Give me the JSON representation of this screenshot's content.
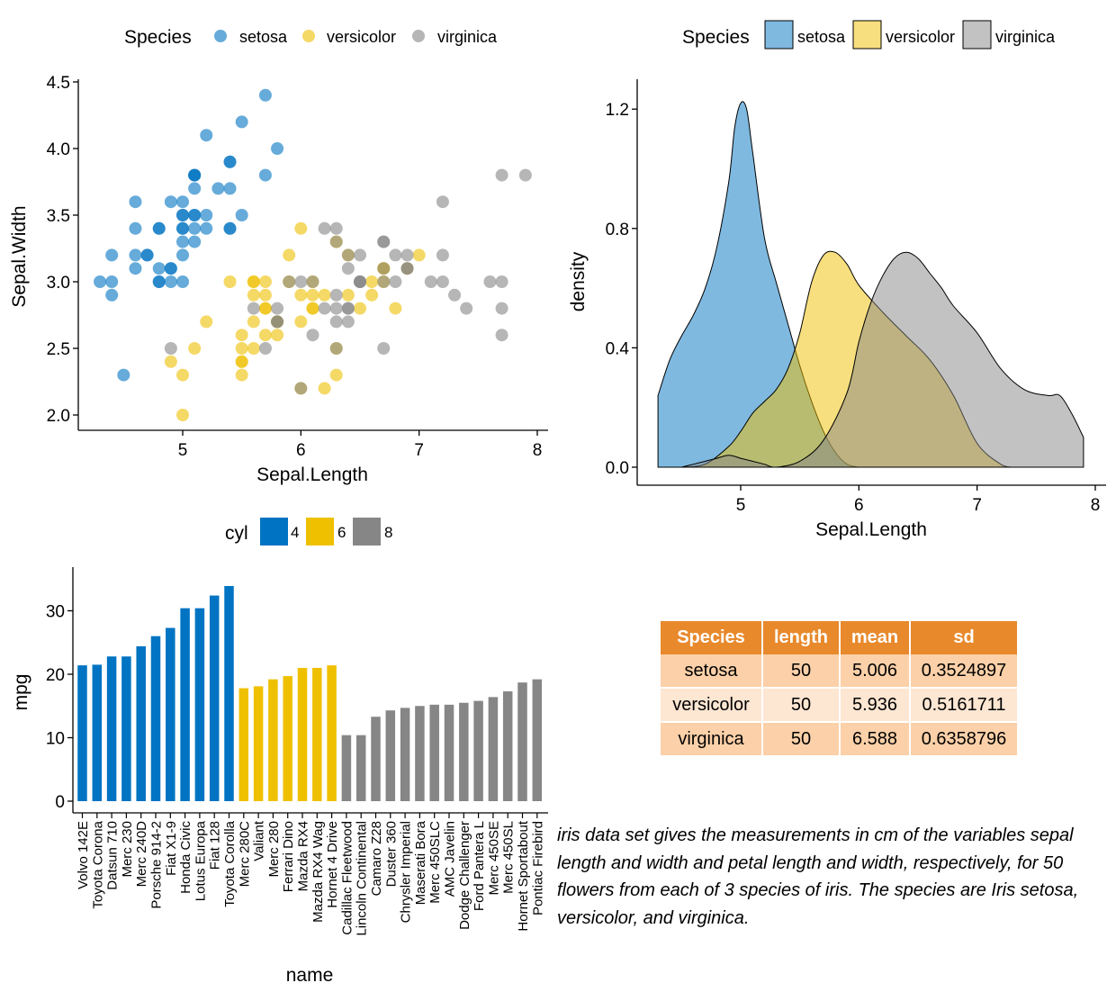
{
  "chart_data": [
    {
      "type": "scatter",
      "xlabel": "Sepal.Length",
      "ylabel": "Sepal.Width",
      "xlim": [
        4.3,
        7.9
      ],
      "ylim": [
        2.0,
        4.4
      ],
      "xticks": [
        "5",
        "6",
        "7",
        "8"
      ],
      "yticks": [
        "2.0",
        "2.5",
        "3.0",
        "3.5",
        "4.0",
        "4.5"
      ],
      "grid": false,
      "legend": {
        "title": "Species",
        "position": "top",
        "entries": [
          "setosa",
          "versicolor",
          "virginica"
        ]
      },
      "series": [
        {
          "name": "setosa",
          "color": "#0073C2",
          "x": [
            5.1,
            4.9,
            4.7,
            4.6,
            5.0,
            5.4,
            4.6,
            5.0,
            4.4,
            4.9,
            5.4,
            4.8,
            4.8,
            4.3,
            5.8,
            5.7,
            5.4,
            5.1,
            5.7,
            5.1,
            5.4,
            5.1,
            4.6,
            5.1,
            4.8,
            5.0,
            5.0,
            5.2,
            5.2,
            4.7,
            4.8,
            5.4,
            5.2,
            5.5,
            4.9,
            5.0,
            5.5,
            4.9,
            4.4,
            5.1,
            5.0,
            4.5,
            4.4,
            5.0,
            5.1,
            4.8,
            5.1,
            4.6,
            5.3,
            5.0
          ],
          "y": [
            3.5,
            3.0,
            3.2,
            3.1,
            3.6,
            3.9,
            3.4,
            3.4,
            2.9,
            3.1,
            3.7,
            3.4,
            3.0,
            3.0,
            4.0,
            4.4,
            3.9,
            3.5,
            3.8,
            3.8,
            3.4,
            3.7,
            3.6,
            3.3,
            3.4,
            3.0,
            3.4,
            3.5,
            3.4,
            3.2,
            3.1,
            3.4,
            4.1,
            4.2,
            3.1,
            3.2,
            3.5,
            3.6,
            3.0,
            3.4,
            3.5,
            2.3,
            3.2,
            3.5,
            3.8,
            3.0,
            3.8,
            3.2,
            3.7,
            3.3
          ]
        },
        {
          "name": "versicolor",
          "color": "#EFC000",
          "x": [
            7.0,
            6.4,
            6.9,
            5.5,
            6.5,
            5.7,
            6.3,
            4.9,
            6.6,
            5.2,
            5.0,
            5.9,
            6.0,
            6.1,
            5.6,
            6.7,
            5.6,
            5.8,
            6.2,
            5.6,
            5.9,
            6.1,
            6.3,
            6.1,
            6.4,
            6.6,
            6.8,
            6.7,
            6.0,
            5.7,
            5.5,
            5.5,
            5.8,
            6.0,
            5.4,
            6.0,
            6.7,
            6.3,
            5.6,
            5.5,
            5.5,
            6.1,
            5.8,
            5.0,
            5.6,
            5.7,
            5.7,
            6.2,
            5.1,
            5.7
          ],
          "y": [
            3.2,
            3.2,
            3.1,
            2.3,
            2.8,
            2.8,
            3.3,
            2.4,
            2.9,
            2.7,
            2.0,
            3.0,
            2.2,
            2.9,
            2.9,
            3.1,
            3.0,
            2.7,
            2.2,
            2.5,
            3.2,
            2.8,
            2.5,
            2.8,
            2.9,
            3.0,
            2.8,
            3.0,
            2.9,
            2.6,
            2.4,
            2.4,
            2.7,
            2.7,
            3.0,
            3.4,
            3.1,
            2.3,
            3.0,
            2.5,
            2.6,
            3.0,
            2.6,
            2.3,
            2.7,
            3.0,
            2.9,
            2.9,
            2.5,
            2.8
          ]
        },
        {
          "name": "virginica",
          "color": "#868686",
          "x": [
            6.3,
            5.8,
            7.1,
            6.3,
            6.5,
            7.6,
            4.9,
            7.3,
            6.7,
            7.2,
            6.5,
            6.4,
            6.8,
            5.7,
            5.8,
            6.4,
            6.5,
            7.7,
            7.7,
            6.0,
            6.9,
            5.6,
            7.7,
            6.3,
            6.7,
            7.2,
            6.2,
            6.1,
            6.4,
            7.2,
            7.4,
            7.9,
            6.4,
            6.3,
            6.1,
            7.7,
            6.3,
            6.4,
            6.0,
            6.9,
            6.7,
            6.9,
            5.8,
            6.8,
            6.7,
            6.7,
            6.3,
            6.5,
            6.2,
            5.9
          ],
          "y": [
            3.3,
            2.7,
            3.0,
            2.9,
            3.0,
            3.0,
            2.5,
            2.9,
            2.5,
            3.6,
            3.2,
            2.7,
            3.0,
            2.5,
            2.8,
            3.2,
            3.0,
            3.8,
            2.6,
            2.2,
            3.2,
            2.8,
            2.8,
            2.7,
            3.3,
            3.2,
            2.8,
            3.0,
            2.8,
            3.0,
            2.8,
            3.8,
            2.8,
            2.8,
            2.6,
            3.0,
            3.4,
            3.1,
            3.0,
            3.1,
            3.1,
            3.1,
            2.7,
            3.2,
            3.3,
            3.0,
            2.5,
            3.0,
            3.4,
            3.0
          ]
        }
      ]
    },
    {
      "type": "area",
      "subtype": "density",
      "xlabel": "Sepal.Length",
      "ylabel": "density",
      "xlim": [
        4.3,
        7.9
      ],
      "ylim": [
        0,
        1.24
      ],
      "xticks": [
        "5",
        "6",
        "7",
        "8"
      ],
      "yticks": [
        "0.0",
        "0.4",
        "0.8",
        "1.2"
      ],
      "grid": false,
      "legend": {
        "title": "Species",
        "position": "top",
        "entries": [
          "setosa",
          "versicolor",
          "virginica"
        ]
      },
      "series": [
        {
          "name": "setosa",
          "color": "#0073C2",
          "x": [
            4.3,
            4.4,
            4.5,
            4.6,
            4.7,
            4.8,
            4.9,
            4.95,
            5.0,
            5.05,
            5.1,
            5.2,
            5.3,
            5.4,
            5.5,
            5.6,
            5.7,
            5.8,
            5.9,
            6.0
          ],
          "y": [
            0.24,
            0.36,
            0.44,
            0.51,
            0.6,
            0.74,
            0.96,
            1.14,
            1.22,
            1.2,
            1.06,
            0.77,
            0.62,
            0.48,
            0.34,
            0.22,
            0.12,
            0.05,
            0.01,
            0.0
          ]
        },
        {
          "name": "versicolor",
          "color": "#EFC000",
          "x": [
            4.5,
            4.7,
            4.9,
            5.0,
            5.1,
            5.2,
            5.3,
            5.4,
            5.5,
            5.6,
            5.7,
            5.8,
            5.9,
            6.0,
            6.2,
            6.4,
            6.6,
            6.8,
            7.0,
            7.2,
            7.3
          ],
          "y": [
            0.0,
            0.01,
            0.07,
            0.12,
            0.18,
            0.22,
            0.26,
            0.33,
            0.45,
            0.62,
            0.71,
            0.72,
            0.68,
            0.61,
            0.52,
            0.44,
            0.36,
            0.24,
            0.08,
            0.01,
            0.0
          ]
        },
        {
          "name": "virginica",
          "color": "#868686",
          "x": [
            4.5,
            4.7,
            4.8,
            4.9,
            5.0,
            5.1,
            5.2,
            5.3,
            5.5,
            5.7,
            5.9,
            6.0,
            6.1,
            6.2,
            6.3,
            6.4,
            6.5,
            6.6,
            6.7,
            6.8,
            7.0,
            7.2,
            7.4,
            7.6,
            7.7,
            7.8,
            7.9
          ],
          "y": [
            0.0,
            0.02,
            0.03,
            0.04,
            0.03,
            0.02,
            0.01,
            0.0,
            0.02,
            0.09,
            0.25,
            0.42,
            0.55,
            0.64,
            0.7,
            0.72,
            0.7,
            0.65,
            0.6,
            0.54,
            0.45,
            0.33,
            0.26,
            0.24,
            0.24,
            0.18,
            0.1
          ]
        }
      ]
    },
    {
      "type": "bar",
      "xlabel": "name",
      "ylabel": "mpg",
      "ylim": [
        0,
        35
      ],
      "yticks": [
        "0",
        "10",
        "20",
        "30"
      ],
      "grid": false,
      "legend": {
        "title": "cyl",
        "position": "top",
        "entries": [
          "4",
          "6",
          "8"
        ]
      },
      "colors": {
        "4": "#0073C2",
        "6": "#EFC000",
        "8": "#868686"
      },
      "categories": [
        "Volvo 142E",
        "Toyota Corona",
        "Datsun 710",
        "Merc 230",
        "Merc 240D",
        "Porsche 914-2",
        "Fiat X1-9",
        "Honda Civic",
        "Lotus Europa",
        "Fiat 128",
        "Toyota Corolla",
        "Merc 280C",
        "Valiant",
        "Merc 280",
        "Ferrari Dino",
        "Mazda RX4",
        "Mazda RX4 Wag",
        "Hornet 4 Drive",
        "Cadillac Fleetwood",
        "Lincoln Continental",
        "Camaro Z28",
        "Duster 360",
        "Chrysler Imperial",
        "Maserati Bora",
        "Merc 450SLC",
        "AMC Javelin",
        "Dodge Challenger",
        "Ford Pantera L",
        "Merc 450SE",
        "Merc 450SL",
        "Hornet Sportabout",
        "Pontiac Firebird"
      ],
      "values": [
        21.4,
        21.5,
        22.8,
        22.8,
        24.4,
        26.0,
        27.3,
        30.4,
        30.4,
        32.4,
        33.9,
        17.8,
        18.1,
        19.2,
        19.7,
        21.0,
        21.0,
        21.4,
        10.4,
        10.4,
        13.3,
        14.3,
        14.7,
        15.0,
        15.2,
        15.2,
        15.5,
        15.8,
        16.4,
        17.3,
        18.7,
        19.2
      ],
      "cyl": [
        4,
        4,
        4,
        4,
        4,
        4,
        4,
        4,
        4,
        4,
        4,
        6,
        6,
        6,
        6,
        6,
        6,
        6,
        8,
        8,
        8,
        8,
        8,
        8,
        8,
        8,
        8,
        8,
        8,
        8,
        8,
        8
      ]
    },
    {
      "type": "table",
      "columns": [
        "Species",
        "length",
        "mean",
        "sd"
      ],
      "rows": [
        [
          "setosa",
          "50",
          "5.006",
          "0.3524897"
        ],
        [
          "versicolor",
          "50",
          "5.936",
          "0.5161711"
        ],
        [
          "virginica",
          "50",
          "6.588",
          "0.6358796"
        ]
      ]
    }
  ],
  "caption": "iris data set gives the measurements in cm of the variables sepal length and width and petal length and width, respectively, for 50 flowers from each of 3 species of iris. The species are Iris setosa, versicolor, and virginica."
}
